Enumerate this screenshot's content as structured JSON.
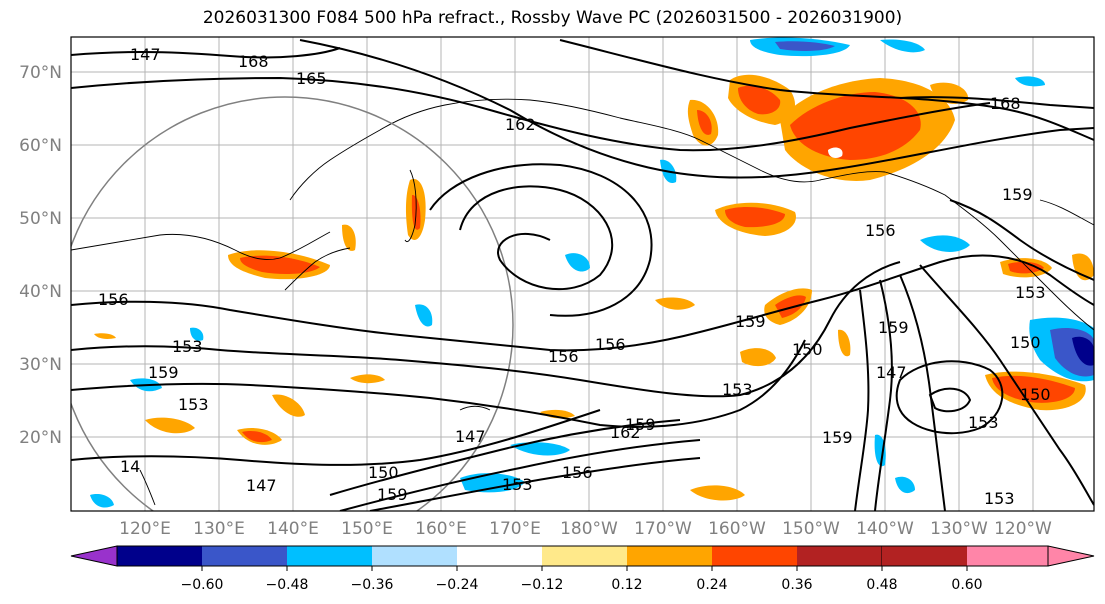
{
  "title": "2026031300 F084 500 hPa refract., Rossby Wave PC (2026031500 - 2026031900)",
  "lat_labels": [
    "70°N",
    "60°N",
    "50°N",
    "40°N",
    "30°N",
    "20°N"
  ],
  "lon_labels": [
    "120°E",
    "130°E",
    "140°E",
    "150°E",
    "160°E",
    "170°E",
    "180°W",
    "170°W",
    "160°W",
    "150°W",
    "140°W",
    "130°W",
    "120°W"
  ],
  "contour_labels": [
    "168",
    "165",
    "162",
    "168",
    "159",
    "156",
    "156",
    "156",
    "156",
    "159",
    "150",
    "153",
    "153",
    "159",
    "153",
    "147",
    "150",
    "147",
    "159",
    "162",
    "159",
    "156",
    "153",
    "159",
    "147",
    "150",
    "153",
    "150",
    "153",
    "159",
    "153",
    "14",
    "147"
  ],
  "colorbar": {
    "ticks": [
      "−0.60",
      "−0.48",
      "−0.36",
      "−0.24",
      "−0.12",
      "0.12",
      "0.24",
      "0.36",
      "0.48",
      "0.60"
    ],
    "colors": [
      "#9932cc",
      "#00008b",
      "#3a56c9",
      "#00bfff",
      "#b0e0ff",
      "#ffffff",
      "#ffe98a",
      "#ffa500",
      "#ff4500",
      "#b22222",
      "#ff85a8"
    ]
  },
  "colors": {
    "contour": "#000000",
    "coastline": "#000000",
    "grid": "#b4b4b4",
    "circle": "#808080",
    "axis_label": "#808080"
  }
}
